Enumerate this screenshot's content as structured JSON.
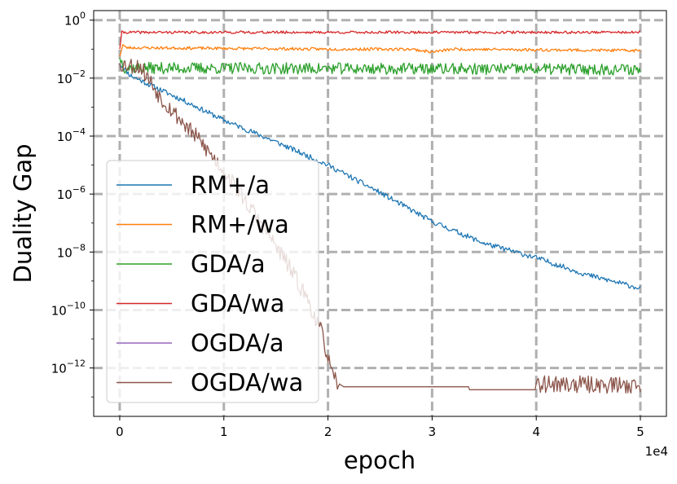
{
  "chart_data": {
    "type": "line",
    "title": "",
    "xlabel": "epoch",
    "ylabel": "Duality Gap",
    "x_multiplier_label": "1e4",
    "x_scale": "linear",
    "y_scale": "log",
    "xlim": [
      -2500,
      52500
    ],
    "ylim_exp": [
      -13.67,
      0.33
    ],
    "grid": true,
    "x_ticks": [
      0,
      10000,
      20000,
      30000,
      40000,
      50000
    ],
    "x_tick_labels": [
      "0",
      "1",
      "2",
      "3",
      "4",
      "5"
    ],
    "y_ticks_exp": [
      0,
      -2,
      -4,
      -6,
      -8,
      -10,
      -12
    ],
    "y_tick_labels": [
      {
        "base": "10",
        "exp": "0"
      },
      {
        "base": "10",
        "exp": "−2"
      },
      {
        "base": "10",
        "exp": "−4"
      },
      {
        "base": "10",
        "exp": "−6"
      },
      {
        "base": "10",
        "exp": "−8"
      },
      {
        "base": "10",
        "exp": "−10"
      },
      {
        "base": "10",
        "exp": "−12"
      }
    ],
    "legend_position": "lower-left",
    "series": [
      {
        "name": "RM+/a",
        "color": "#1f77b4",
        "noise": 0.09,
        "seed": 11,
        "points": [
          [
            0,
            -1.5
          ],
          [
            1000,
            -1.9
          ],
          [
            3000,
            -2.25
          ],
          [
            6000,
            -2.75
          ],
          [
            10000,
            -3.45
          ],
          [
            15000,
            -4.2
          ],
          [
            20000,
            -5.0
          ],
          [
            25000,
            -5.95
          ],
          [
            30000,
            -6.95
          ],
          [
            35000,
            -7.7
          ],
          [
            40000,
            -8.2
          ],
          [
            45000,
            -8.8
          ],
          [
            50000,
            -9.25
          ]
        ]
      },
      {
        "name": "RM+/wa",
        "color": "#ff7f0e",
        "noise": 0.05,
        "seed": 23,
        "points": [
          [
            0,
            -1.25
          ],
          [
            300,
            -0.85
          ],
          [
            600,
            -0.95
          ],
          [
            20000,
            -1.0
          ],
          [
            28000,
            -1.0
          ],
          [
            30000,
            -1.1
          ],
          [
            32000,
            -1.0
          ],
          [
            50000,
            -1.05
          ]
        ]
      },
      {
        "name": "GDA/a",
        "color": "#2ca02c",
        "noise": 0.2,
        "seed": 37,
        "points": [
          [
            0,
            -1.3
          ],
          [
            500,
            -1.65
          ],
          [
            50000,
            -1.7
          ]
        ]
      },
      {
        "name": "GDA/wa",
        "color": "#d62728",
        "noise": 0.045,
        "seed": 41,
        "points": [
          [
            0,
            -1.0
          ],
          [
            200,
            -0.42
          ],
          [
            50000,
            -0.42
          ]
        ]
      },
      {
        "name": "OGDA/a",
        "color": "#9467bd",
        "noise": 0.0,
        "seed": 0,
        "points": []
      },
      {
        "name": "OGDA/wa",
        "color": "#8c564b",
        "noise": 0.3,
        "seed": 53,
        "points": [
          [
            0,
            -1.5
          ],
          [
            2000,
            -1.6
          ],
          [
            4000,
            -2.7
          ],
          [
            6000,
            -3.5
          ],
          [
            8000,
            -4.3
          ],
          [
            10000,
            -5.2
          ],
          [
            12000,
            -6.2
          ],
          [
            14000,
            -7.25
          ],
          [
            16000,
            -8.35
          ],
          [
            18000,
            -9.6
          ],
          [
            19500,
            -10.9
          ],
          [
            20500,
            -12.4
          ],
          [
            21500,
            -12.65
          ],
          [
            26000,
            -12.65
          ],
          [
            33500,
            -12.65
          ],
          [
            33600,
            -12.75
          ],
          [
            40000,
            -12.75
          ],
          [
            40100,
            -12.55
          ],
          [
            50000,
            -12.6
          ]
        ]
      }
    ]
  }
}
